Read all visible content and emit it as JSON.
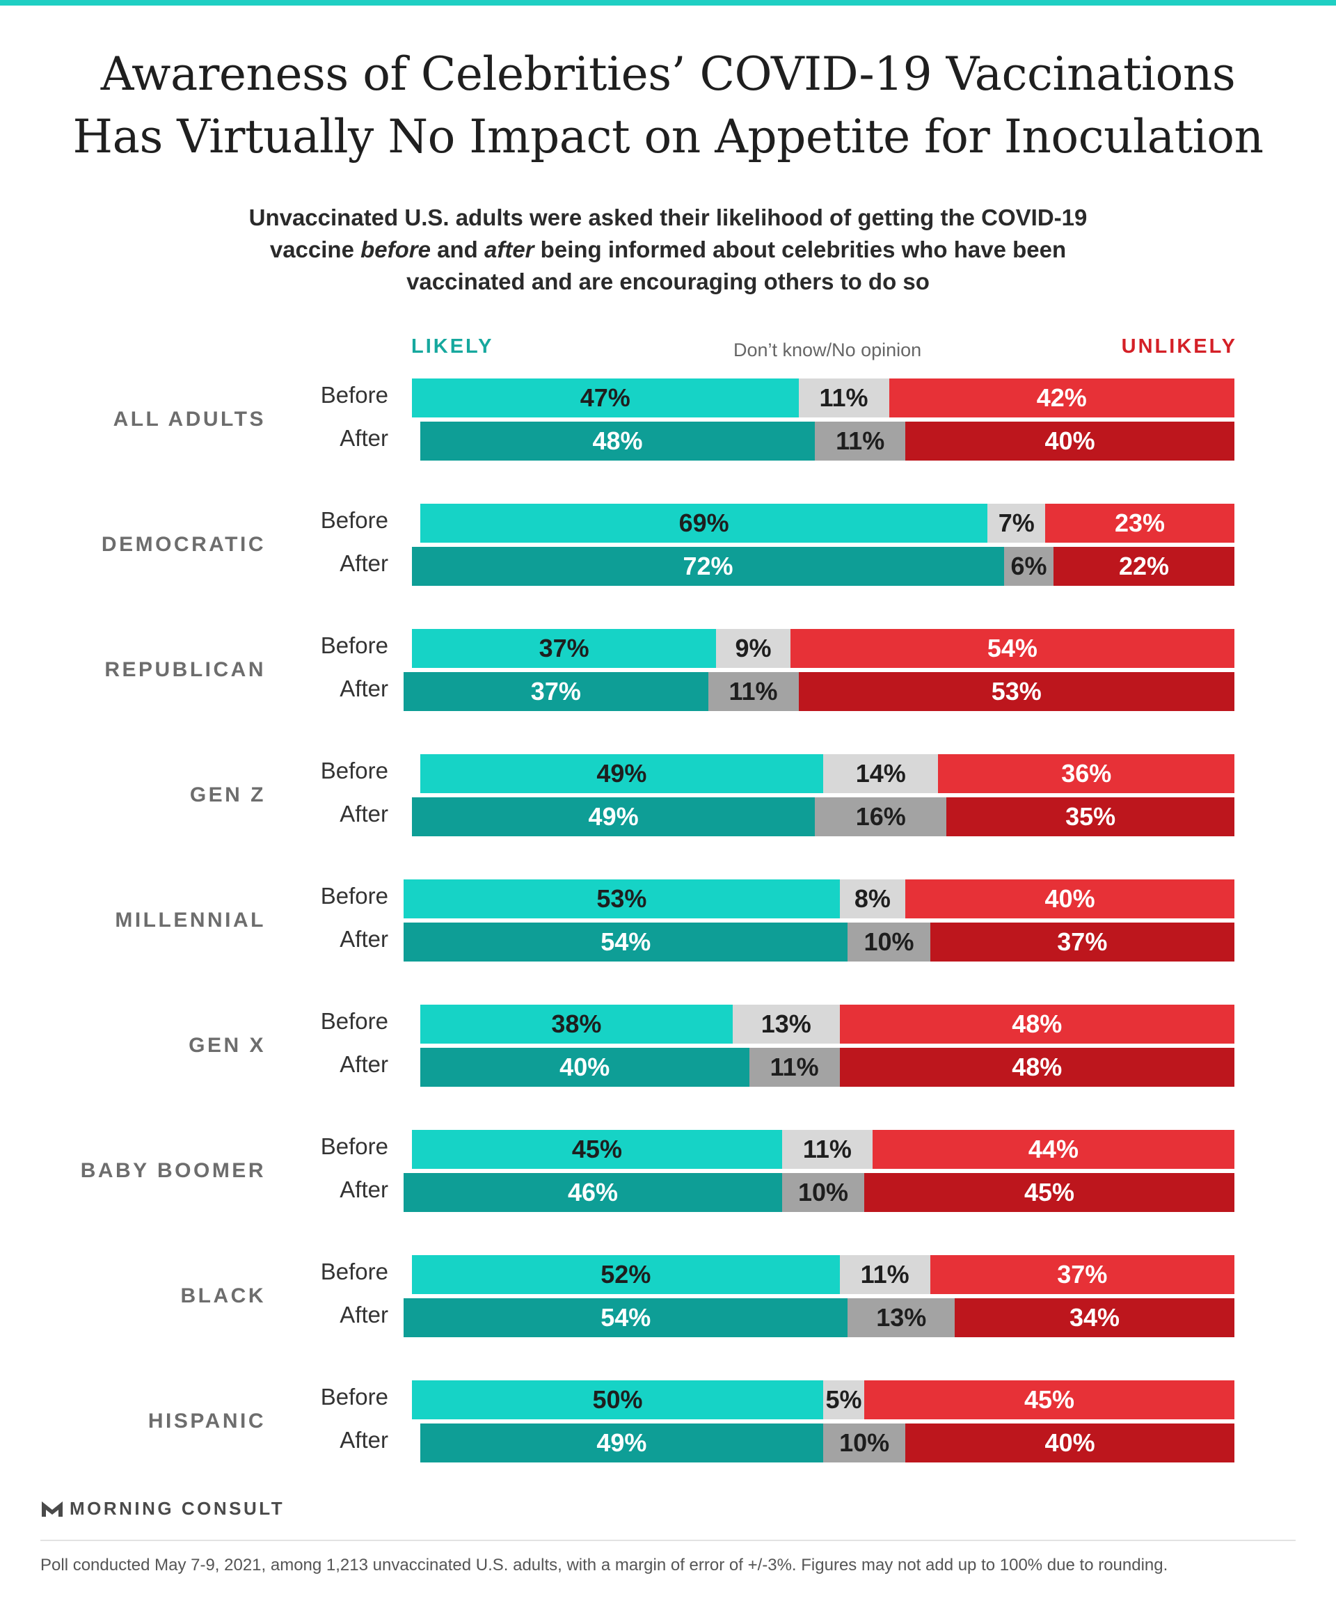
{
  "colors": {
    "top_rule": "#1fcfc3",
    "likely_before": "#16d3c6",
    "likely_after": "#0e9e96",
    "dk_before": "#d8d8d8",
    "dk_after": "#a3a3a3",
    "unlikely_before": "#e73137",
    "unlikely_after": "#bd161d",
    "likely_header": "#16a89e",
    "unlikely_header": "#d42027",
    "logo": "#4a4a4a"
  },
  "title_lines": [
    "Awareness of Celebrities’ COVID-19 Vaccinations",
    "Has Virtually No Impact on Appetite for Inoculation"
  ],
  "subtitle": {
    "line1": "Unvaccinated U.S. adults were asked their likelihood of getting the COVID-19",
    "line2_pre": "vaccine ",
    "line2_em1": "before",
    "line2_mid": " and ",
    "line2_em2": "after",
    "line2_post": " being informed about celebrities who have been",
    "line3": "vaccinated and are encouraging others to do so"
  },
  "legend": {
    "likely": "LIKELY",
    "dont_know": "Don’t know/No opinion",
    "unlikely": "UNLIKELY"
  },
  "chart_data": {
    "type": "bar",
    "orientation": "horizontal",
    "stacked": true,
    "unit": "%",
    "series": [
      {
        "name": "LIKELY"
      },
      {
        "name": "Don’t know/No opinion"
      },
      {
        "name": "UNLIKELY"
      }
    ],
    "groups": [
      {
        "label": "ALL ADULTS",
        "rows": [
          {
            "label": "Before",
            "likely": 47,
            "dk": 11,
            "unlikely": 42
          },
          {
            "label": "After",
            "likely": 48,
            "dk": 11,
            "unlikely": 40
          }
        ]
      },
      {
        "label": "DEMOCRATIC",
        "rows": [
          {
            "label": "Before",
            "likely": 69,
            "dk": 7,
            "unlikely": 23
          },
          {
            "label": "After",
            "likely": 72,
            "dk": 6,
            "unlikely": 22
          }
        ]
      },
      {
        "label": "REPUBLICAN",
        "rows": [
          {
            "label": "Before",
            "likely": 37,
            "dk": 9,
            "unlikely": 54
          },
          {
            "label": "After",
            "likely": 37,
            "dk": 11,
            "unlikely": 53
          }
        ]
      },
      {
        "label": "GEN Z",
        "rows": [
          {
            "label": "Before",
            "likely": 49,
            "dk": 14,
            "unlikely": 36
          },
          {
            "label": "After",
            "likely": 49,
            "dk": 16,
            "unlikely": 35
          }
        ]
      },
      {
        "label": "MILLENNIAL",
        "rows": [
          {
            "label": "Before",
            "likely": 53,
            "dk": 8,
            "unlikely": 40
          },
          {
            "label": "After",
            "likely": 54,
            "dk": 10,
            "unlikely": 37
          }
        ]
      },
      {
        "label": "GEN X",
        "rows": [
          {
            "label": "Before",
            "likely": 38,
            "dk": 13,
            "unlikely": 48
          },
          {
            "label": "After",
            "likely": 40,
            "dk": 11,
            "unlikely": 48
          }
        ]
      },
      {
        "label": "BABY BOOMER",
        "rows": [
          {
            "label": "Before",
            "likely": 45,
            "dk": 11,
            "unlikely": 44
          },
          {
            "label": "After",
            "likely": 46,
            "dk": 10,
            "unlikely": 45
          }
        ]
      },
      {
        "label": "BLACK",
        "rows": [
          {
            "label": "Before",
            "likely": 52,
            "dk": 11,
            "unlikely": 37
          },
          {
            "label": "After",
            "likely": 54,
            "dk": 13,
            "unlikely": 34
          }
        ]
      },
      {
        "label": "HISPANIC",
        "rows": [
          {
            "label": "Before",
            "likely": 50,
            "dk": 5,
            "unlikely": 45
          },
          {
            "label": "After",
            "likely": 49,
            "dk": 10,
            "unlikely": 40
          }
        ]
      }
    ]
  },
  "logo_text": "MORNING CONSULT",
  "logo_icon": "morning-consult-m-logo",
  "footnote": "Poll conducted May 7-9, 2021, among 1,213 unvaccinated U.S. adults, with a margin of error of +/-3%. Figures may not add up to 100% due to rounding."
}
